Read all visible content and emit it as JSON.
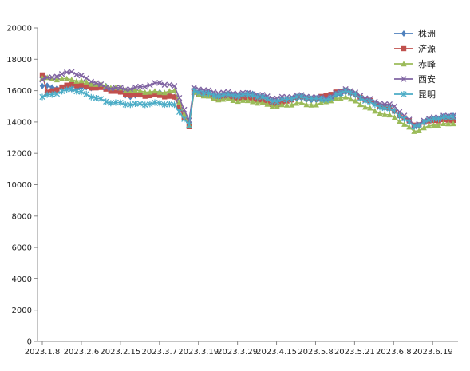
{
  "chart_data": {
    "type": "line",
    "title": "",
    "xlabel": "",
    "ylabel": "",
    "ylim": [
      0,
      20000
    ],
    "yticks": [
      0,
      2000,
      4000,
      6000,
      8000,
      10000,
      12000,
      14000,
      16000,
      18000,
      20000
    ],
    "xtick_labels": [
      "2023.1.8",
      "2023.2.6",
      "2023.2.15",
      "2023.3.7",
      "2023.3.19",
      "2023.3.29",
      "2023.4.15",
      "2023.5.8",
      "2023.5.21",
      "2023.6.8",
      "2023.6.19"
    ],
    "grid": false,
    "legend_position": "top-right",
    "point_count": 85,
    "series": [
      {
        "name": "株洲",
        "color": "#4f81bd",
        "marker": "diamond",
        "anchors": [
          [
            0,
            16300
          ],
          [
            6,
            16100
          ],
          [
            13,
            16300
          ],
          [
            18,
            15600
          ],
          [
            24,
            15900
          ],
          [
            27,
            15600
          ],
          [
            30,
            14000
          ],
          [
            31,
            16000
          ],
          [
            35,
            15700
          ],
          [
            43,
            15800
          ],
          [
            48,
            15300
          ],
          [
            52,
            15500
          ],
          [
            56,
            15400
          ],
          [
            58,
            15300
          ],
          [
            62,
            15900
          ],
          [
            68,
            15200
          ],
          [
            72,
            14700
          ],
          [
            76,
            13700
          ],
          [
            80,
            14200
          ],
          [
            84,
            14400
          ]
        ]
      },
      {
        "name": "济源",
        "color": "#c0504d",
        "marker": "square",
        "anchors": [
          [
            0,
            17000
          ],
          [
            1,
            15900
          ],
          [
            6,
            16400
          ],
          [
            13,
            16100
          ],
          [
            18,
            15700
          ],
          [
            24,
            15700
          ],
          [
            27,
            15600
          ],
          [
            30,
            13700
          ],
          [
            31,
            15900
          ],
          [
            35,
            15600
          ],
          [
            43,
            15500
          ],
          [
            48,
            15100
          ],
          [
            52,
            15600
          ],
          [
            56,
            15500
          ],
          [
            58,
            15700
          ],
          [
            62,
            16000
          ],
          [
            68,
            15200
          ],
          [
            72,
            14700
          ],
          [
            76,
            13800
          ],
          [
            80,
            14100
          ],
          [
            84,
            14100
          ]
        ]
      },
      {
        "name": "赤峰",
        "color": "#9bbb59",
        "marker": "triangle",
        "anchors": [
          [
            0,
            16800
          ],
          [
            6,
            16700
          ],
          [
            13,
            16300
          ],
          [
            18,
            16000
          ],
          [
            24,
            15900
          ],
          [
            27,
            16000
          ],
          [
            30,
            13800
          ],
          [
            31,
            15900
          ],
          [
            35,
            15500
          ],
          [
            43,
            15300
          ],
          [
            48,
            15000
          ],
          [
            52,
            15200
          ],
          [
            56,
            15100
          ],
          [
            58,
            15300
          ],
          [
            62,
            15600
          ],
          [
            68,
            14700
          ],
          [
            72,
            14300
          ],
          [
            76,
            13400
          ],
          [
            80,
            13800
          ],
          [
            84,
            13900
          ]
        ]
      },
      {
        "name": "西安",
        "color": "#8064a2",
        "marker": "x",
        "anchors": [
          [
            0,
            16700
          ],
          [
            6,
            17200
          ],
          [
            13,
            16200
          ],
          [
            18,
            16100
          ],
          [
            24,
            16500
          ],
          [
            27,
            16300
          ],
          [
            30,
            14100
          ],
          [
            31,
            16200
          ],
          [
            35,
            15900
          ],
          [
            43,
            15800
          ],
          [
            48,
            15500
          ],
          [
            52,
            15700
          ],
          [
            56,
            15600
          ],
          [
            58,
            15500
          ],
          [
            62,
            16100
          ],
          [
            68,
            15300
          ],
          [
            72,
            15000
          ],
          [
            76,
            13800
          ],
          [
            80,
            14300
          ],
          [
            84,
            14400
          ]
        ]
      },
      {
        "name": "昆明",
        "color": "#4bacc6",
        "marker": "star",
        "anchors": [
          [
            0,
            15600
          ],
          [
            6,
            16100
          ],
          [
            13,
            15300
          ],
          [
            18,
            15100
          ],
          [
            24,
            15200
          ],
          [
            27,
            15100
          ],
          [
            30,
            13800
          ],
          [
            31,
            16000
          ],
          [
            35,
            15700
          ],
          [
            43,
            15700
          ],
          [
            48,
            15300
          ],
          [
            52,
            15600
          ],
          [
            56,
            15500
          ],
          [
            58,
            15400
          ],
          [
            62,
            16000
          ],
          [
            68,
            15100
          ],
          [
            72,
            14700
          ],
          [
            76,
            13700
          ],
          [
            80,
            14200
          ],
          [
            84,
            14300
          ]
        ]
      }
    ]
  }
}
